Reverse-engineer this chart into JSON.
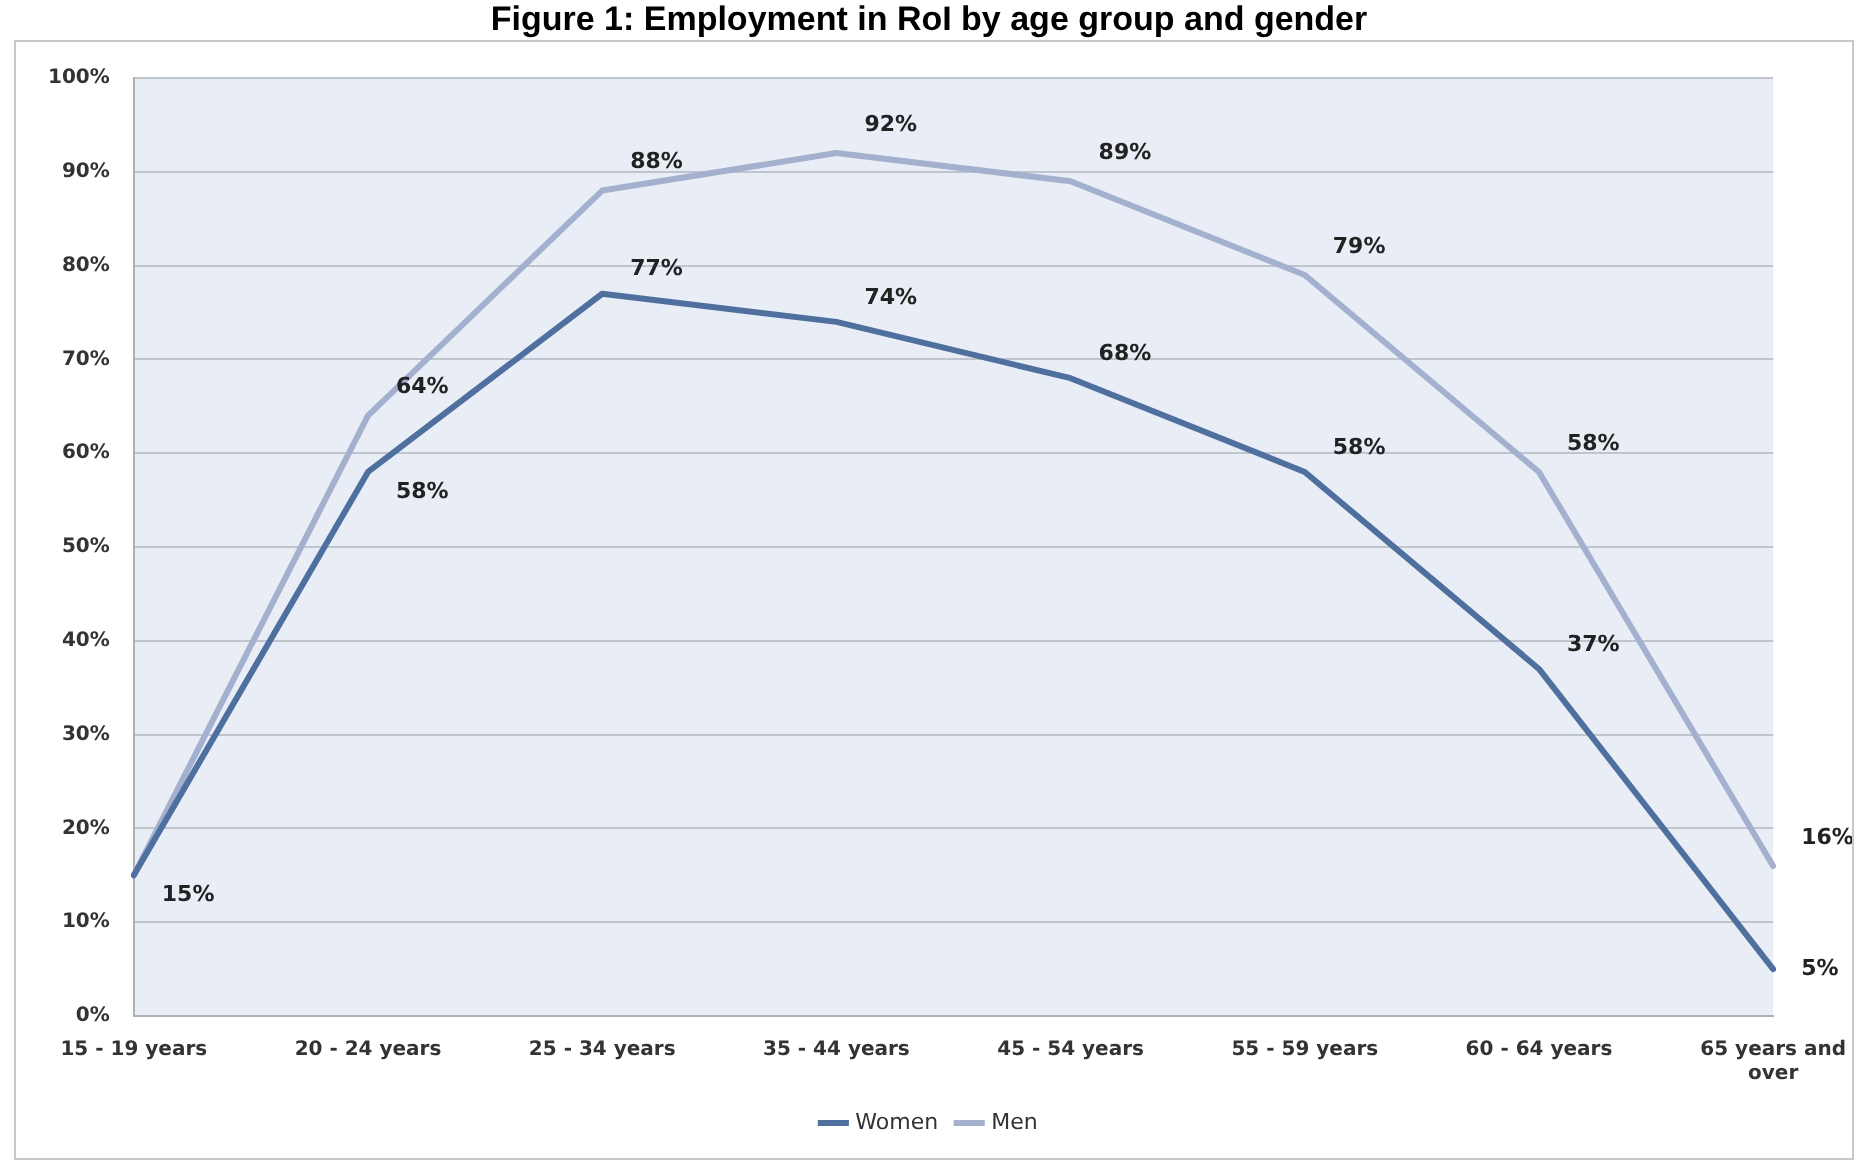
{
  "chart_data": {
    "type": "line",
    "title": "Figure 1: Employment in RoI by age group and gender",
    "categories": [
      "15 - 19 years",
      "20 - 24 years",
      "25 - 34 years",
      "35 - 44 years",
      "45 - 54 years",
      "55 - 59 years",
      "60 - 64 years",
      "65 years and over"
    ],
    "series": [
      {
        "name": "Women",
        "color": "#4f6f9f",
        "values": [
          15,
          58,
          77,
          74,
          68,
          58,
          37,
          5
        ],
        "value_labels": [
          "15%",
          "58%",
          "77%",
          "74%",
          "68%",
          "58%",
          "37%",
          "5%"
        ]
      },
      {
        "name": "Men",
        "color": "#a3b1cf",
        "values": [
          15,
          64,
          88,
          92,
          89,
          79,
          58,
          16
        ],
        "value_labels": [
          null,
          "64%",
          "88%",
          "92%",
          "89%",
          "79%",
          "58%",
          "16%"
        ]
      }
    ],
    "ylim": [
      0,
      100
    ],
    "yticks": [
      {
        "value": 0,
        "label": "0%"
      },
      {
        "value": 10,
        "label": "10%"
      },
      {
        "value": 20,
        "label": "20%"
      },
      {
        "value": 30,
        "label": "30%"
      },
      {
        "value": 40,
        "label": "40%"
      },
      {
        "value": 50,
        "label": "50%"
      },
      {
        "value": 60,
        "label": "60%"
      },
      {
        "value": 70,
        "label": "70%"
      },
      {
        "value": 80,
        "label": "80%"
      },
      {
        "value": 90,
        "label": "90%"
      },
      {
        "value": 100,
        "label": "100%"
      }
    ],
    "grid": "y",
    "legend": "bottom",
    "marker": "none",
    "line_style": "solid"
  }
}
